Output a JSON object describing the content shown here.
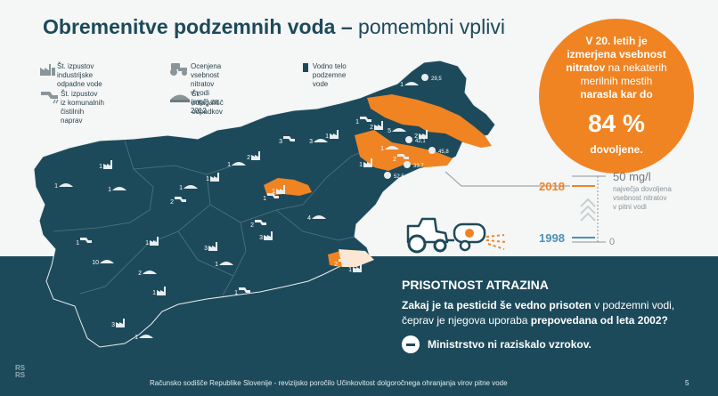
{
  "title": {
    "main": "Obremenitve podzemnih voda",
    "dash": " – ",
    "sub": "pomembni vplivi"
  },
  "legend": {
    "industry": {
      "icon": "factory-icon",
      "text": "Št. izpustov industrijske\nodpadne vode"
    },
    "municipal": {
      "icon": "pipe-outflow-icon",
      "text": "Št. izpustov iz komunalnih\nčistilnih naprav"
    },
    "nitrate": {
      "icon": "tractor-icon",
      "text": "Ocenjena vsebnost nitratov\nv vodi (mg/l) za 2012"
    },
    "landfill": {
      "icon": "landfill-icon",
      "text": "Št. odlagališč\nodpadkov"
    },
    "waterbody": {
      "icon": "water-body-square-icon",
      "text": "Vodno telo\npodzemne vode"
    }
  },
  "map": {
    "labels": [
      "1",
      "2",
      "1",
      "5",
      "2",
      "1",
      "2",
      "1",
      "1",
      "3",
      "3",
      "2",
      "1",
      "1",
      "1",
      "2",
      "1",
      "1",
      "1",
      "1",
      "1",
      "3",
      "2",
      "4",
      "1",
      "1",
      "2",
      "10",
      "3",
      "1",
      "2",
      "1",
      "1",
      "1",
      "3",
      "1"
    ],
    "nitrate_values": [
      "29,5",
      "52,5",
      "33,7",
      "45,8",
      "42,1"
    ]
  },
  "nitrate_circle": {
    "line1": "V 20. letih je",
    "line2": "izmerjena vsebnost",
    "line3a": "nitratov",
    "line3b": " na nekaterih",
    "line4": "merilnih mestih",
    "line5": "narasla kar do",
    "percent": "84 %",
    "below": "dovoljene."
  },
  "scale": {
    "max_label": "50 mg/l",
    "max_desc": "največja dovoljena\nvsebnost nitratov\nv pitni vodi",
    "year_2018": "2018",
    "year_1998": "1998",
    "zero": "0"
  },
  "atrazine": {
    "title": "PRISOTNOST ATRAZINA",
    "q1": "Zakaj je ta pesticid še vedno prisoten",
    "q2": " v podzemni vodi,",
    "q3": "čeprav je njegova uporaba ",
    "q4": "prepovedana od leta 2002?",
    "note": "Ministrstvo ni raziskalo vzrokov."
  },
  "footer": {
    "text": "Računsko sodišče Republike Slovenije - revizijsko poročilo Učinkovitost dolgoročnega ohranjanja virov pitne vode",
    "page": "5"
  },
  "logo": {
    "text": "RS\nRS"
  },
  "colors": {
    "dark": "#1d4a5a",
    "orange": "#f08423",
    "blue": "#4e90b8",
    "bg": "#f5f6f6"
  }
}
